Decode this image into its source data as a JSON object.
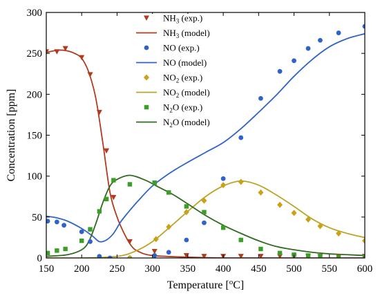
{
  "chart_data": {
    "type": "scatter",
    "xlabel_text": "Temperature [",
    "xlabel_sup": "o",
    "xlabel_unit": "C]",
    "ylabel": "Concentration [ppm]",
    "xlim": [
      150,
      600
    ],
    "ylim": [
      0,
      300
    ],
    "xticks": [
      150,
      200,
      250,
      300,
      350,
      400,
      450,
      500,
      550,
      600
    ],
    "yticks": [
      0,
      50,
      100,
      150,
      200,
      250,
      300
    ],
    "grid": false,
    "legend_placement": "top-center",
    "series": [
      {
        "key": "nh3-exp",
        "species": "NH",
        "subscript": "3",
        "suffix": " (exp.)",
        "kind": "marker",
        "marker": "triangle-down",
        "color": "#b23a1e",
        "x": [
          150,
          165,
          177,
          200,
          212,
          225,
          235,
          245,
          268,
          303,
          348,
          373,
          400,
          425,
          453,
          480,
          500,
          520,
          537,
          563,
          600
        ],
        "y": [
          252,
          252,
          256,
          245,
          224,
          178,
          131,
          74,
          20,
          8,
          3,
          2,
          2,
          2,
          2,
          2,
          2,
          2,
          2,
          2,
          2
        ]
      },
      {
        "key": "nh3-model",
        "species": "NH",
        "subscript": "3",
        "suffix": " (model)",
        "kind": "line",
        "color": "#b23a1e",
        "x": [
          150,
          160,
          170,
          180,
          190,
          200,
          210,
          220,
          230,
          240,
          250,
          260,
          270,
          280,
          300,
          350,
          400,
          450,
          500,
          550,
          600
        ],
        "y": [
          251,
          253,
          254,
          253,
          250,
          244,
          227,
          195,
          140,
          80,
          50,
          30,
          15,
          8,
          3,
          1,
          0,
          0,
          0,
          0,
          0
        ]
      },
      {
        "key": "no-exp",
        "species": "NO",
        "subscript": "",
        "suffix": " (exp.)",
        "kind": "marker",
        "marker": "circle",
        "color": "#2f63c9",
        "x": [
          152,
          165,
          175,
          200,
          212,
          225,
          240,
          268,
          303,
          323,
          348,
          373,
          400,
          425,
          453,
          480,
          500,
          520,
          537,
          563,
          600
        ],
        "y": [
          45,
          44,
          40,
          32,
          20,
          2,
          0,
          0,
          3,
          7,
          22,
          43,
          97,
          147,
          195,
          228,
          241,
          256,
          266,
          275,
          283
        ]
      },
      {
        "key": "no-model",
        "species": "NO",
        "subscript": "",
        "suffix": " (model)",
        "kind": "line",
        "color": "#2f63c9",
        "x": [
          150,
          165,
          180,
          200,
          215,
          225,
          235,
          245,
          255,
          265,
          280,
          300,
          325,
          350,
          375,
          400,
          425,
          450,
          475,
          500,
          525,
          550,
          575,
          600
        ],
        "y": [
          51,
          49,
          45,
          36,
          27,
          20,
          22,
          30,
          44,
          55,
          70,
          88,
          104,
          117,
          129,
          141,
          158,
          178,
          199,
          222,
          242,
          258,
          268,
          274
        ]
      },
      {
        "key": "no2-exp",
        "species": "NO",
        "subscript": "2",
        "suffix": " (exp.)",
        "kind": "marker",
        "marker": "diamond",
        "color": "#c9a218",
        "x": [
          268,
          305,
          323,
          348,
          373,
          400,
          425,
          453,
          480,
          500,
          520,
          537,
          563,
          600
        ],
        "y": [
          0,
          23,
          38,
          56,
          70,
          89,
          93,
          80,
          65,
          55,
          47,
          39,
          30,
          21
        ]
      },
      {
        "key": "no2-model",
        "species": "NO",
        "subscript": "2",
        "suffix": " (model)",
        "kind": "line",
        "color": "#bba428",
        "x": [
          150,
          200,
          250,
          275,
          300,
          325,
          350,
          375,
          400,
          425,
          450,
          475,
          500,
          525,
          550,
          575,
          600
        ],
        "y": [
          0,
          0,
          2,
          8,
          20,
          38,
          57,
          75,
          88,
          94,
          89,
          77,
          63,
          48,
          37,
          30,
          25
        ]
      },
      {
        "key": "n2o-exp",
        "species": "N",
        "subscript": "2",
        "suffix": "O (exp.)",
        "kind": "marker",
        "marker": "square",
        "color": "#3a9e28",
        "x": [
          152,
          165,
          177,
          200,
          212,
          225,
          235,
          245,
          268,
          303,
          323,
          348,
          373,
          400,
          425,
          453,
          480,
          500,
          520,
          537,
          563,
          600
        ],
        "y": [
          6,
          9,
          11,
          21,
          35,
          57,
          72,
          95,
          90,
          92,
          80,
          63,
          56,
          37,
          22,
          11,
          6,
          4,
          3,
          2,
          1,
          1
        ]
      },
      {
        "key": "n2o-model",
        "species": "N",
        "subscript": "2",
        "suffix": "O (model)",
        "kind": "line",
        "color": "#2f6b1e",
        "x": [
          150,
          180,
          200,
          210,
          220,
          230,
          240,
          250,
          268,
          290,
          310,
          330,
          350,
          375,
          400,
          425,
          450,
          475,
          500,
          525,
          550,
          575,
          600
        ],
        "y": [
          2,
          4,
          10,
          20,
          42,
          68,
          88,
          96,
          101,
          95,
          86,
          77,
          66,
          52,
          40,
          30,
          21,
          14,
          10,
          7,
          5,
          4,
          3
        ]
      }
    ]
  }
}
